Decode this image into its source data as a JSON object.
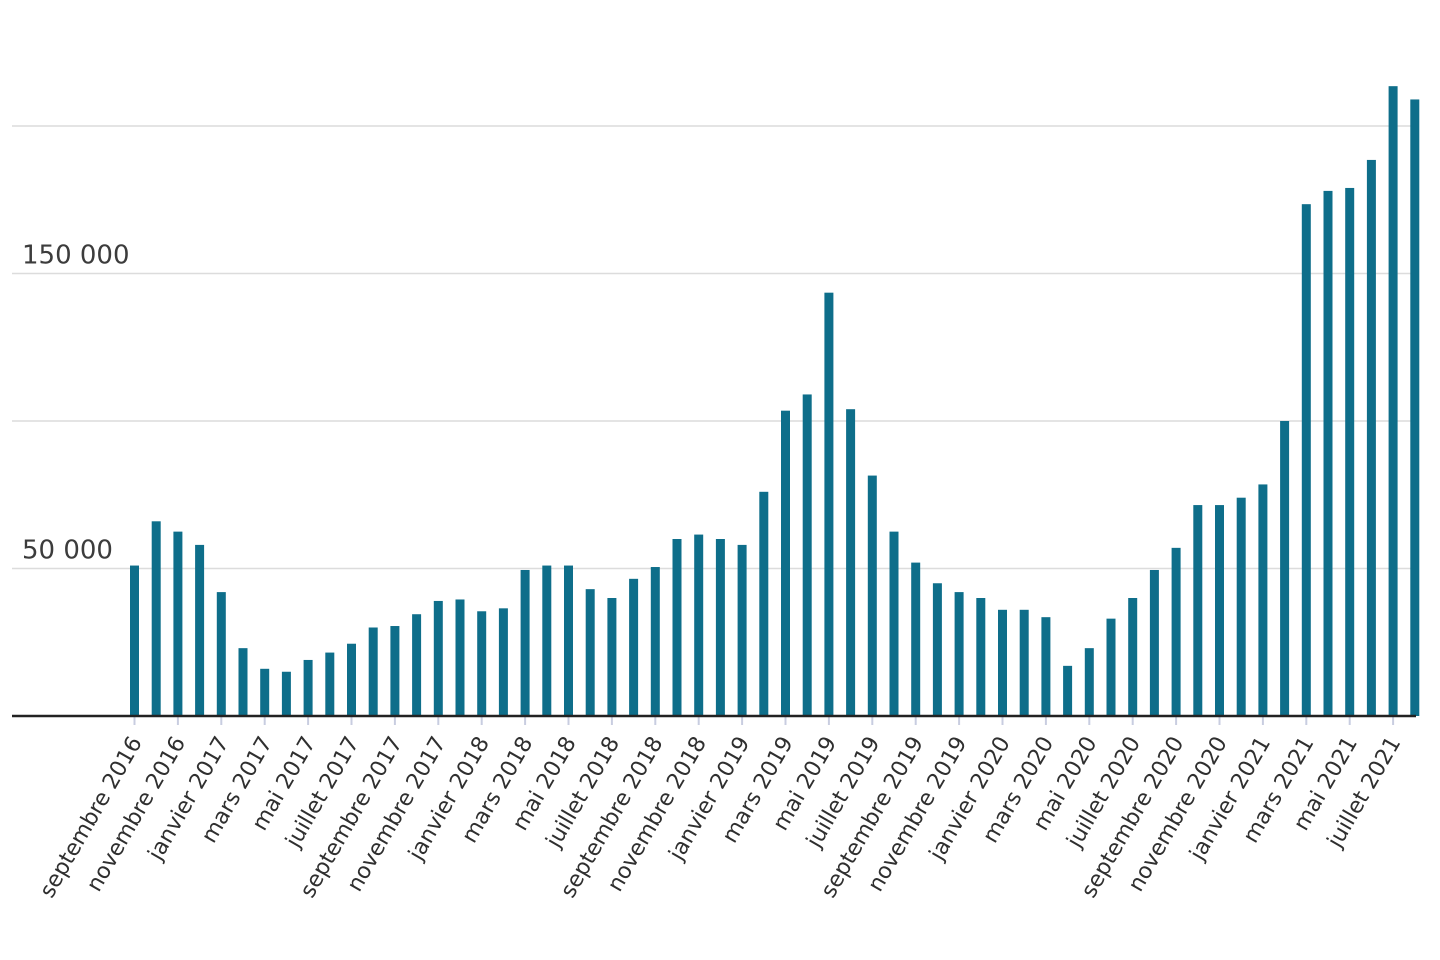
{
  "chart_data": {
    "type": "bar",
    "title": "",
    "xlabel": "",
    "ylabel": "",
    "ylim": [
      0,
      215000
    ],
    "y_gridlines": [
      50000,
      100000,
      150000,
      200000
    ],
    "y_tick_labels": [
      {
        "value": 50000,
        "label": "50 000"
      },
      {
        "value": 150000,
        "label": "150 000"
      }
    ],
    "bar_color": "#0e6e8a",
    "grid": true,
    "categories": [
      "septembre 2016",
      "octobre 2016",
      "novembre 2016",
      "décembre 2016",
      "janvier 2017",
      "février 2017",
      "mars 2017",
      "avril 2017",
      "mai 2017",
      "juin 2017",
      "juillet 2017",
      "août 2017",
      "septembre 2017",
      "octobre 2017",
      "novembre 2017",
      "décembre 2017",
      "janvier 2018",
      "février 2018",
      "mars 2018",
      "avril 2018",
      "mai 2018",
      "juin 2018",
      "juillet 2018",
      "août 2018",
      "septembre 2018",
      "octobre 2018",
      "novembre 2018",
      "décembre 2018",
      "janvier 2019",
      "février 2019",
      "mars 2019",
      "avril 2019",
      "mai 2019",
      "juin 2019",
      "juillet 2019",
      "août 2019",
      "septembre 2019",
      "octobre 2019",
      "novembre 2019",
      "décembre 2019",
      "janvier 2020",
      "février 2020",
      "mars 2020",
      "avril 2020",
      "mai 2020",
      "juin 2020",
      "juillet 2020",
      "août 2020",
      "septembre 2020",
      "octobre 2020",
      "novembre 2020",
      "décembre 2020",
      "janvier 2021",
      "février 2021",
      "mars 2021",
      "avril 2021",
      "mai 2021",
      "juin 2021",
      "juillet 2021",
      "août 2021"
    ],
    "values": [
      51000,
      66000,
      62500,
      58000,
      42000,
      23000,
      16000,
      15000,
      19000,
      21500,
      24500,
      30000,
      30500,
      34500,
      39000,
      39500,
      35500,
      36500,
      49500,
      51000,
      51000,
      43000,
      40000,
      46500,
      50500,
      60000,
      61500,
      60000,
      58000,
      76000,
      103500,
      109000,
      143500,
      104000,
      81500,
      62500,
      52000,
      45000,
      42000,
      40000,
      36000,
      36000,
      33500,
      17000,
      23000,
      33000,
      40000,
      49500,
      57000,
      71500,
      71500,
      74000,
      78500,
      100000,
      173500,
      178000,
      179000,
      188500,
      213500,
      209000
    ],
    "x_tick_labels": [
      "septembre 2016",
      "novembre 2016",
      "janvier 2017",
      "mars 2017",
      "mai 2017",
      "juillet 2017",
      "septembre 2017",
      "novembre 2017",
      "janvier 2018",
      "mars 2018",
      "mai 2018",
      "juillet 2018",
      "septembre 2018",
      "novembre 2018",
      "janvier 2019",
      "mars 2019",
      "mai 2019",
      "juillet 2019",
      "septembre 2019",
      "novembre 2019",
      "janvier 2020",
      "mars 2020",
      "mai 2020",
      "juillet 2020",
      "septembre 2020",
      "novembre 2020",
      "janvier 2021",
      "mars 2021",
      "mai 2021",
      "juillet 2021"
    ]
  }
}
